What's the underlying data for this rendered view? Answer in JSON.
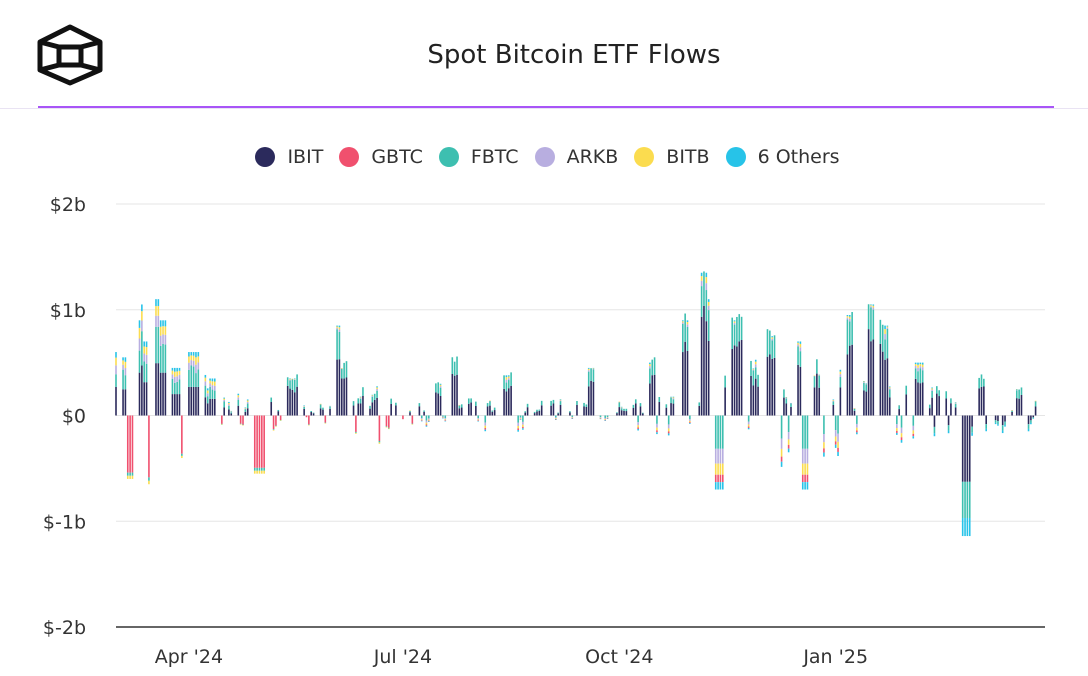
{
  "title": "Spot Bitcoin ETF Flows",
  "logo": {
    "icon": "block-cube-logo-icon"
  },
  "colors": {
    "accent_rule": "#a855f7",
    "grid": "#e5e5e5",
    "axis": "#333333"
  },
  "legend": [
    {
      "label": "IBIT",
      "color": "#2b2a5c"
    },
    {
      "label": "GBTC",
      "color": "#f0506e"
    },
    {
      "label": "FBTC",
      "color": "#3dbfb0"
    },
    {
      "label": "ARKB",
      "color": "#b8aee0"
    },
    {
      "label": "BITB",
      "color": "#fbdc4f"
    },
    {
      "label": "6 Others",
      "color": "#27c3e8"
    }
  ],
  "chart_data": {
    "type": "bar",
    "stacked": true,
    "title": "Spot Bitcoin ETF Flows",
    "unit": "USD",
    "y_ticks": [
      {
        "value": 2,
        "label": "$2b"
      },
      {
        "value": 1,
        "label": "$1b"
      },
      {
        "value": 0,
        "label": "$0"
      },
      {
        "value": -1,
        "label": "$-1b"
      },
      {
        "value": -2,
        "label": "$-2b"
      }
    ],
    "ylim": [
      -2,
      2
    ],
    "x_range": [
      "2024-03-01",
      "2025-03-31"
    ],
    "x_ticks": [
      {
        "date": "2024-04-01",
        "label": "Apr '24"
      },
      {
        "date": "2024-07-01",
        "label": "Jul '24"
      },
      {
        "date": "2024-10-01",
        "label": "Oct '24"
      },
      {
        "date": "2025-01-01",
        "label": "Jan '25"
      }
    ],
    "grid": true,
    "legend_position": "top-center",
    "series_names": [
      "IBIT",
      "GBTC",
      "FBTC",
      "ARKB",
      "BITB",
      "6 Others"
    ],
    "total_flow_samples": [
      {
        "date": "2024-03-01",
        "total": 0.6
      },
      {
        "date": "2024-03-04",
        "total": 0.55
      },
      {
        "date": "2024-03-06",
        "total": -0.6
      },
      {
        "date": "2024-03-11",
        "total": 0.9
      },
      {
        "date": "2024-03-12",
        "total": 1.05
      },
      {
        "date": "2024-03-13",
        "total": 0.7
      },
      {
        "date": "2024-03-15",
        "total": -0.65
      },
      {
        "date": "2024-03-18",
        "total": 1.1
      },
      {
        "date": "2024-03-20",
        "total": 0.9
      },
      {
        "date": "2024-03-26",
        "total": 0.45
      },
      {
        "date": "2024-04-03",
        "total": 0.6
      },
      {
        "date": "2024-04-12",
        "total": 0.35
      },
      {
        "date": "2024-05-01",
        "total": -0.55
      },
      {
        "date": "2024-05-15",
        "total": 0.35
      },
      {
        "date": "2024-06-04",
        "total": 0.85
      },
      {
        "date": "2024-06-05",
        "total": 0.45
      },
      {
        "date": "2024-07-15",
        "total": 0.3
      },
      {
        "date": "2024-07-22",
        "total": 0.5
      },
      {
        "date": "2024-08-15",
        "total": 0.38
      },
      {
        "date": "2024-09-20",
        "total": 0.45
      },
      {
        "date": "2024-10-14",
        "total": 0.5
      },
      {
        "date": "2024-10-28",
        "total": 0.9
      },
      {
        "date": "2024-11-07",
        "total": 1.35
      },
      {
        "date": "2024-11-08",
        "total": 1.1
      },
      {
        "date": "2024-11-12",
        "total": -0.7
      },
      {
        "date": "2024-11-20",
        "total": 0.9
      },
      {
        "date": "2024-12-05",
        "total": 0.75
      },
      {
        "date": "2024-12-16",
        "total": 0.7
      },
      {
        "date": "2024-12-19",
        "total": -0.7
      },
      {
        "date": "2025-01-06",
        "total": 0.95
      },
      {
        "date": "2025-01-17",
        "total": 1.05
      },
      {
        "date": "2025-01-21",
        "total": 0.85
      },
      {
        "date": "2025-02-06",
        "total": 0.5
      },
      {
        "date": "2025-02-25",
        "total": -1.14
      },
      {
        "date": "2025-03-03",
        "total": 0.35
      },
      {
        "date": "2025-03-21",
        "total": 0.25
      }
    ]
  }
}
